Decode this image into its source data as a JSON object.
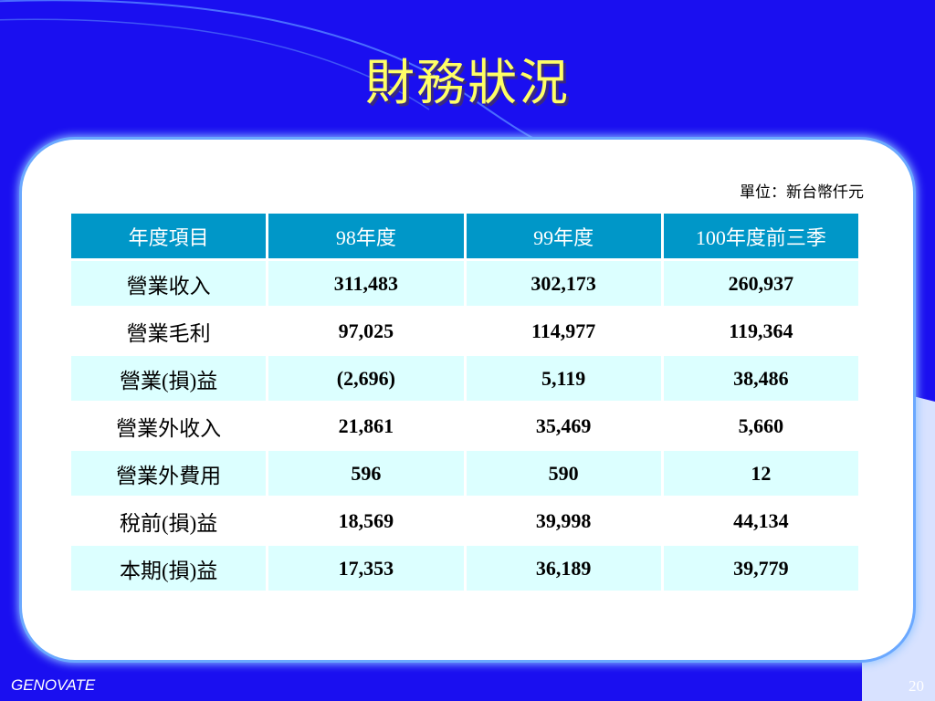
{
  "slide": {
    "title": "財務狀況",
    "unit_note": "單位：新台幣仟元",
    "footer_brand": "GENOVATE",
    "page_number": "20"
  },
  "table": {
    "headers": [
      "年度項目",
      "98年度",
      "99年度",
      "100年度前三季"
    ],
    "rows": [
      [
        "營業收入",
        "311,483",
        "302,173",
        "260,937"
      ],
      [
        "營業毛利",
        "97,025",
        "114,977",
        "119,364"
      ],
      [
        "營業(損)益",
        "(2,696)",
        "5,119",
        "38,486"
      ],
      [
        "營業外收入",
        "21,861",
        "35,469",
        "5,660"
      ],
      [
        "營業外費用",
        "596",
        "590",
        "12"
      ],
      [
        "稅前(損)益",
        "18,569",
        "39,998",
        "44,134"
      ],
      [
        "本期(損)益",
        "17,353",
        "36,189",
        "39,779"
      ]
    ]
  },
  "colors": {
    "background": "#1a0ff0",
    "title": "#ffff66",
    "header_fill": "#0097c8",
    "row_tint": "#dcffff"
  }
}
